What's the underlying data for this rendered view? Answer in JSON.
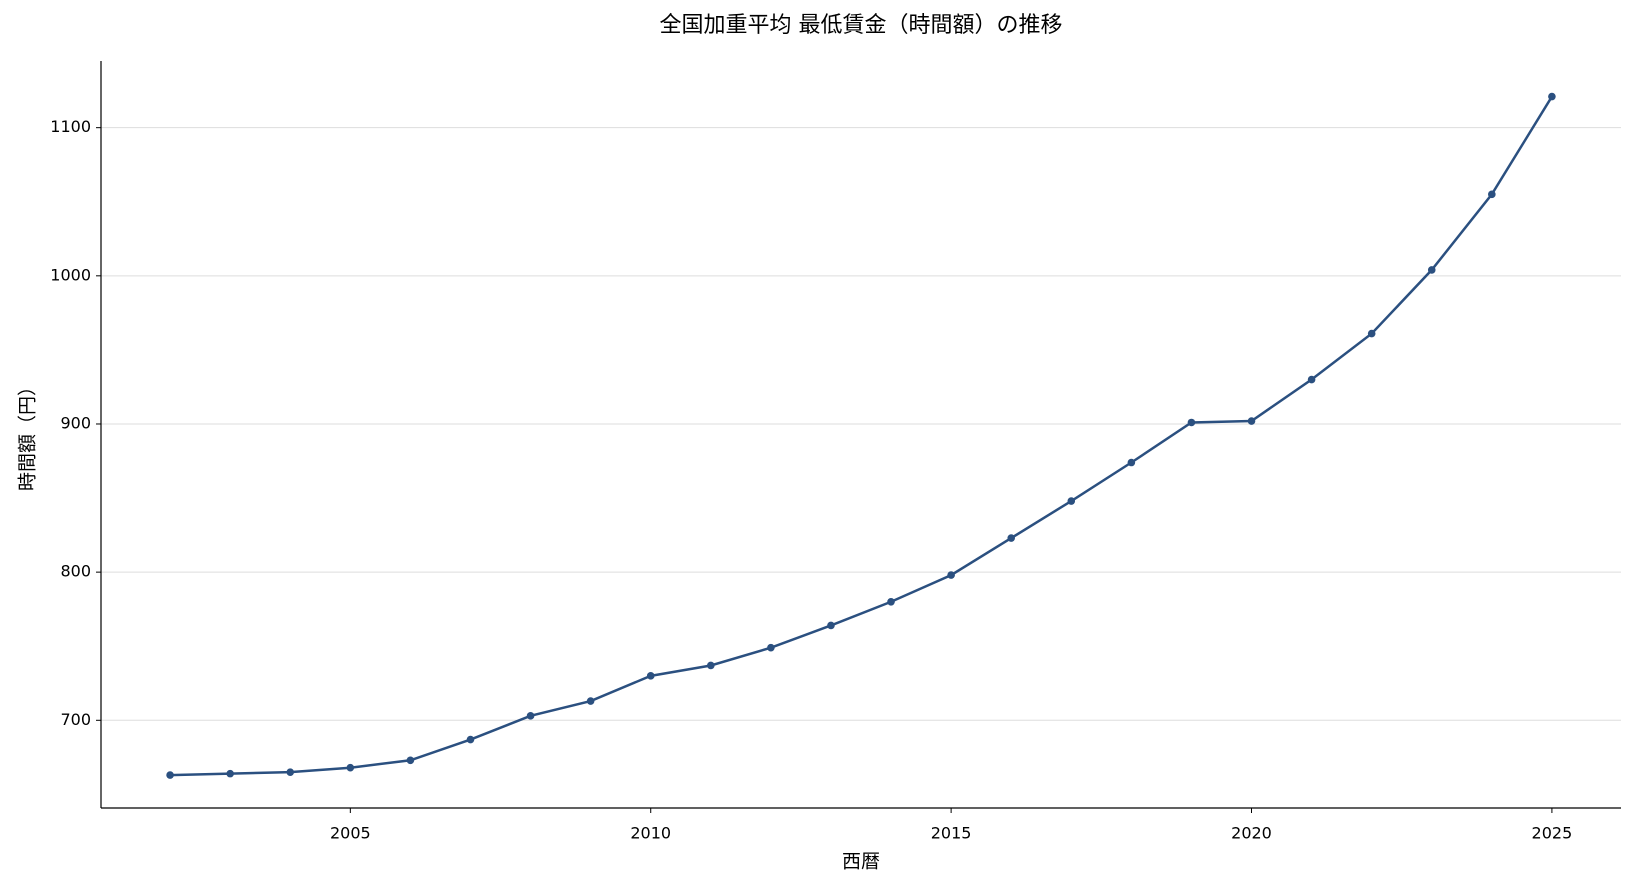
{
  "chart_data": {
    "type": "line",
    "title": "全国加重平均 最低賃金（時間額）の推移",
    "x_label": "西暦",
    "y_label": "時間額（円）",
    "x": [
      2002,
      2003,
      2004,
      2005,
      2006,
      2007,
      2008,
      2009,
      2010,
      2011,
      2012,
      2013,
      2014,
      2015,
      2016,
      2017,
      2018,
      2019,
      2020,
      2021,
      2022,
      2023,
      2024,
      2025
    ],
    "series": [
      {
        "name": "最低賃金",
        "color": "#2b5080",
        "values": [
          663,
          664,
          665,
          668,
          673,
          687,
          703,
          713,
          730,
          737,
          749,
          764,
          780,
          798,
          823,
          848,
          874,
          901,
          902,
          930,
          961,
          1004,
          1055,
          1121
        ]
      }
    ],
    "xlim": [
      2000.85,
      2026.15
    ],
    "ylim": [
      640.8,
      1145
    ],
    "xticks": [
      2005,
      2010,
      2015,
      2020,
      2025
    ],
    "yticks": [
      700,
      800,
      900,
      1000,
      1100
    ],
    "grid": "y",
    "legend": false
  }
}
